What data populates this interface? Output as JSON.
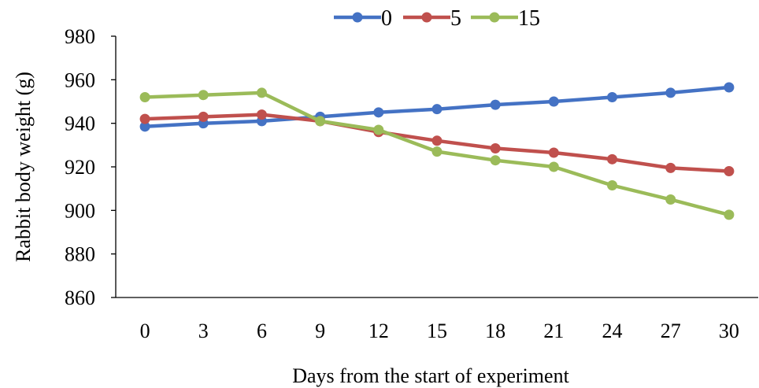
{
  "chart_data": {
    "type": "line",
    "title": "",
    "xlabel": "Days from the start of experiment",
    "ylabel": "Rabbit body weight (g)",
    "x": [
      0,
      3,
      6,
      9,
      12,
      15,
      18,
      21,
      24,
      27,
      30
    ],
    "x_tick_labels": [
      "0",
      "3",
      "6",
      "9",
      "12",
      "15",
      "18",
      "21",
      "24",
      "27",
      "30"
    ],
    "ylim": [
      860,
      980
    ],
    "y_ticks": [
      860,
      880,
      900,
      920,
      940,
      960,
      980
    ],
    "y_tick_labels": [
      "860",
      "880",
      "900",
      "920",
      "940",
      "960",
      "980"
    ],
    "grid": false,
    "legend_position": "top-center",
    "series": [
      {
        "name": "0",
        "color": "#4472C4",
        "values": [
          938.5,
          940,
          941,
          943,
          945,
          946.5,
          948.5,
          950,
          952,
          954,
          956.5
        ]
      },
      {
        "name": "5",
        "color": "#C0504D",
        "values": [
          942,
          943,
          944,
          941,
          936,
          932,
          928.5,
          926.5,
          923.5,
          919.5,
          918
        ]
      },
      {
        "name": "15",
        "color": "#9BBB59",
        "values": [
          952,
          953,
          954,
          941,
          937,
          927,
          923,
          920,
          911.5,
          905,
          898
        ]
      }
    ]
  }
}
